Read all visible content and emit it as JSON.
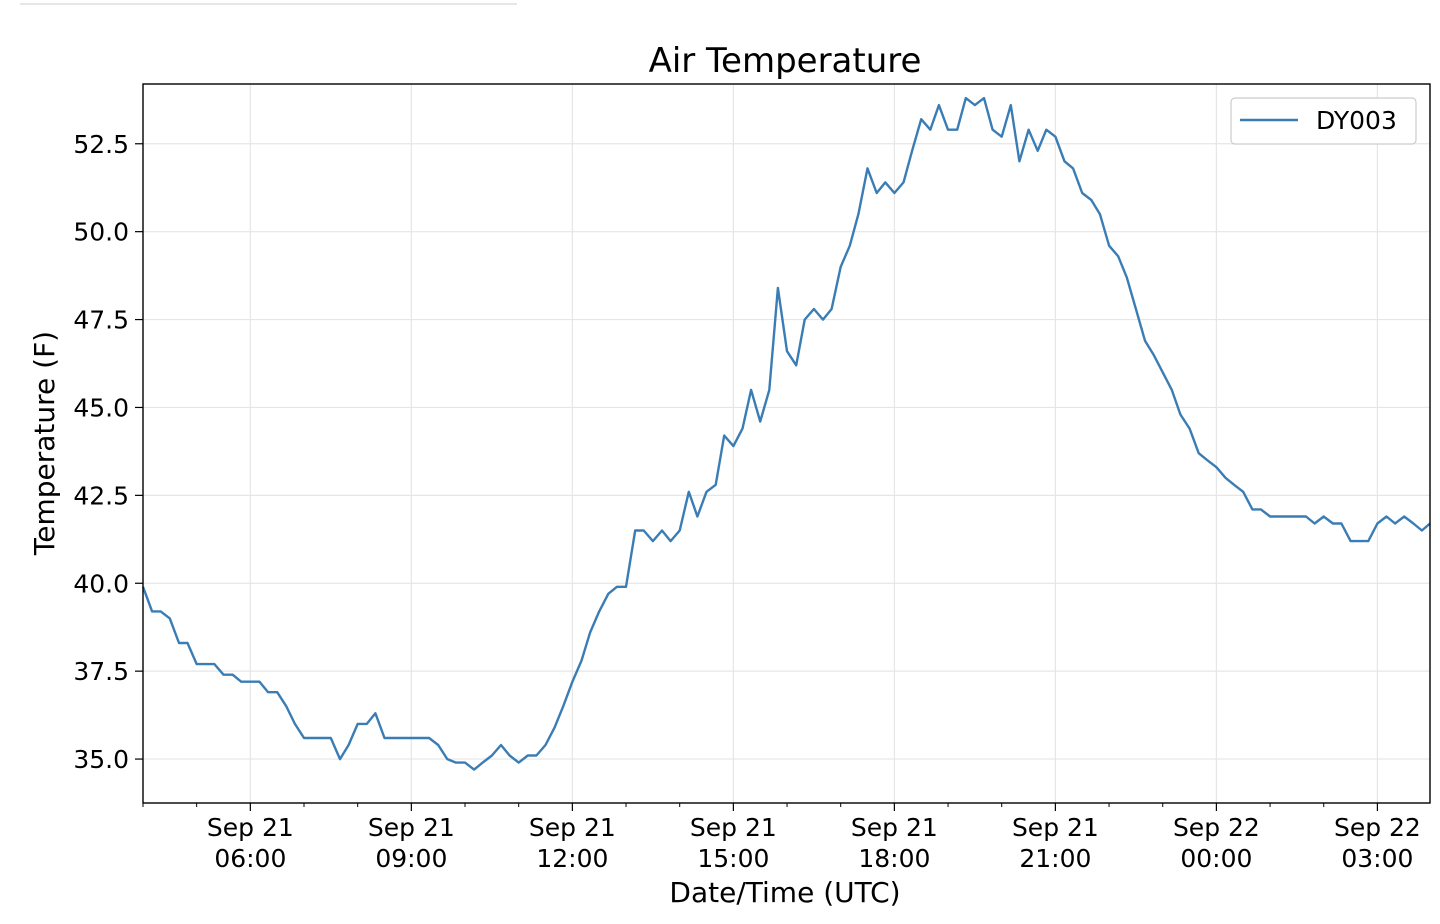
{
  "chart_data": {
    "type": "line",
    "title": "Air Temperature",
    "xlabel": "Date/Time (UTC)",
    "ylabel": "Temperature (F)",
    "grid": true,
    "legend_position": "top-right",
    "line_color": "#3a7db4",
    "x_tick_labels": [
      {
        "date": "Sep 21",
        "time": "06:00",
        "hours": 6
      },
      {
        "date": "Sep 21",
        "time": "09:00",
        "hours": 9
      },
      {
        "date": "Sep 21",
        "time": "12:00",
        "hours": 12
      },
      {
        "date": "Sep 21",
        "time": "15:00",
        "hours": 15
      },
      {
        "date": "Sep 21",
        "time": "18:00",
        "hours": 18
      },
      {
        "date": "Sep 21",
        "time": "21:00",
        "hours": 21
      },
      {
        "date": "Sep 22",
        "time": "00:00",
        "hours": 24
      },
      {
        "date": "Sep 22",
        "time": "03:00",
        "hours": 27
      }
    ],
    "y_ticks": [
      "35.0",
      "37.5",
      "40.0",
      "42.5",
      "45.0",
      "47.5",
      "50.0",
      "52.5"
    ],
    "xlim": [
      4.0,
      27.98
    ],
    "ylim": [
      33.75,
      54.2
    ],
    "series": [
      {
        "name": "DY003",
        "x": [
          4.0,
          4.17,
          4.33,
          4.5,
          4.67,
          4.83,
          5.0,
          5.17,
          5.33,
          5.5,
          5.67,
          5.83,
          6.0,
          6.17,
          6.33,
          6.5,
          6.67,
          6.83,
          7.0,
          7.17,
          7.33,
          7.5,
          7.67,
          7.83,
          8.0,
          8.17,
          8.33,
          8.5,
          8.67,
          8.83,
          9.0,
          9.17,
          9.33,
          9.5,
          9.67,
          9.83,
          10.0,
          10.17,
          10.33,
          10.5,
          10.67,
          10.83,
          11.0,
          11.17,
          11.33,
          11.5,
          11.67,
          11.83,
          12.0,
          12.17,
          12.33,
          12.5,
          12.67,
          12.83,
          13.0,
          13.17,
          13.33,
          13.5,
          13.67,
          13.83,
          14.0,
          14.17,
          14.33,
          14.5,
          14.67,
          14.83,
          15.0,
          15.17,
          15.33,
          15.5,
          15.67,
          15.83,
          16.0,
          16.17,
          16.33,
          16.5,
          16.67,
          16.83,
          17.0,
          17.17,
          17.33,
          17.5,
          17.67,
          17.83,
          18.0,
          18.17,
          18.33,
          18.5,
          18.67,
          18.83,
          19.0,
          19.17,
          19.33,
          19.5,
          19.67,
          19.83,
          20.0,
          20.17,
          20.33,
          20.5,
          20.67,
          20.83,
          21.0,
          21.17,
          21.33,
          21.5,
          21.67,
          21.83,
          22.0,
          22.17,
          22.33,
          22.5,
          22.67,
          22.83,
          23.0,
          23.17,
          23.33,
          23.5,
          23.67,
          23.83,
          24.0,
          24.17,
          24.33,
          24.5,
          24.67,
          24.83,
          25.0,
          25.17,
          25.33,
          25.5,
          25.67,
          25.83,
          26.0,
          26.17,
          26.33,
          26.5,
          26.67,
          26.83,
          27.0,
          27.17,
          27.33,
          27.5,
          27.67,
          27.83,
          27.98
        ],
        "values": [
          39.9,
          39.2,
          39.2,
          39.0,
          38.3,
          38.3,
          37.7,
          37.7,
          37.7,
          37.4,
          37.4,
          37.2,
          37.2,
          37.2,
          36.9,
          36.9,
          36.5,
          36.0,
          35.6,
          35.6,
          35.6,
          35.6,
          35.0,
          35.4,
          36.0,
          36.0,
          36.3,
          35.6,
          35.6,
          35.6,
          35.6,
          35.6,
          35.6,
          35.4,
          35.0,
          34.9,
          34.9,
          34.7,
          34.9,
          35.1,
          35.4,
          35.1,
          34.9,
          35.1,
          35.1,
          35.4,
          35.9,
          36.5,
          37.2,
          37.8,
          38.6,
          39.2,
          39.7,
          39.9,
          39.9,
          41.5,
          41.5,
          41.2,
          41.5,
          41.2,
          41.5,
          42.6,
          41.9,
          42.6,
          42.8,
          44.2,
          43.9,
          44.4,
          45.5,
          44.6,
          45.5,
          48.4,
          46.6,
          46.2,
          47.5,
          47.8,
          47.5,
          47.8,
          49.0,
          49.6,
          50.5,
          51.8,
          51.1,
          51.4,
          51.1,
          51.4,
          52.3,
          53.2,
          52.9,
          53.6,
          52.9,
          52.9,
          53.8,
          53.6,
          53.8,
          52.9,
          52.7,
          53.6,
          52.0,
          52.9,
          52.3,
          52.9,
          52.7,
          52.0,
          51.8,
          51.1,
          50.9,
          50.5,
          49.6,
          49.3,
          48.7,
          47.8,
          46.9,
          46.5,
          46.0,
          45.5,
          44.8,
          44.4,
          43.7,
          43.5,
          43.3,
          43.0,
          42.8,
          42.6,
          42.1,
          42.1,
          41.9,
          41.9,
          41.9,
          41.9,
          41.9,
          41.7,
          41.9,
          41.7,
          41.7,
          41.2,
          41.2,
          41.2,
          41.7,
          41.9,
          41.7,
          41.9,
          41.7,
          41.5,
          41.7
        ]
      }
    ]
  }
}
